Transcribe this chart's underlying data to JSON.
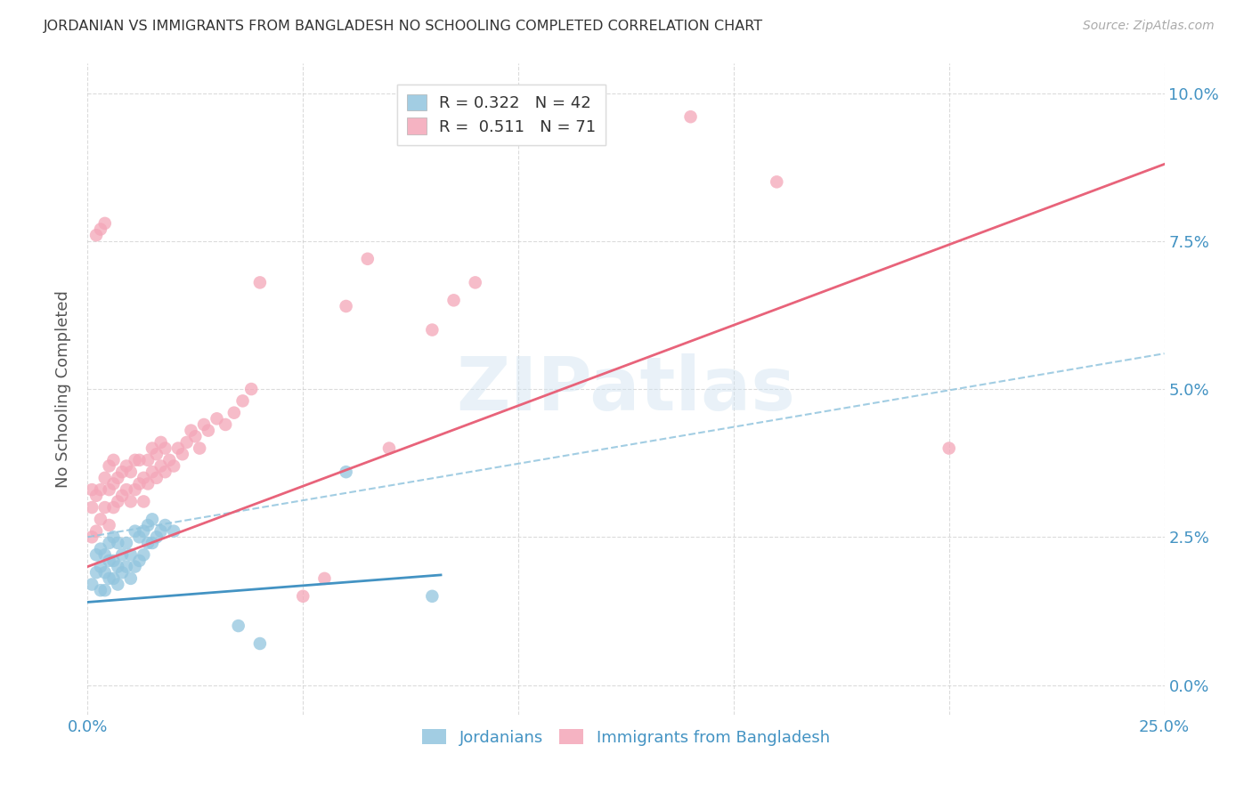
{
  "title": "JORDANIAN VS IMMIGRANTS FROM BANGLADESH NO SCHOOLING COMPLETED CORRELATION CHART",
  "source": "Source: ZipAtlas.com",
  "ylabel": "No Schooling Completed",
  "series1_color": "#92c5de",
  "series2_color": "#f4a6b8",
  "line1_color": "#4393c3",
  "line2_color": "#e8637a",
  "dashed_line_color": "#92c5de",
  "background_color": "#ffffff",
  "grid_color": "#cccccc",
  "watermark": "ZIPatlas",
  "xlim": [
    0,
    0.25
  ],
  "ylim": [
    -0.005,
    0.105
  ],
  "xticks": [
    0.0,
    0.05,
    0.1,
    0.15,
    0.2,
    0.25
  ],
  "yticks": [
    0.0,
    0.025,
    0.05,
    0.075,
    0.1
  ],
  "jordanian_line": {
    "x0": 0.0,
    "y0": 0.014,
    "x1": 0.25,
    "y1": 0.028
  },
  "bangladesh_line": {
    "x0": 0.0,
    "y0": 0.02,
    "x1": 0.25,
    "y1": 0.088
  },
  "dashed_line": {
    "x0": 0.0,
    "y0": 0.025,
    "x1": 0.25,
    "y1": 0.056
  },
  "jordanian_scatter": [
    [
      0.001,
      0.017
    ],
    [
      0.002,
      0.019
    ],
    [
      0.002,
      0.022
    ],
    [
      0.003,
      0.016
    ],
    [
      0.003,
      0.02
    ],
    [
      0.003,
      0.023
    ],
    [
      0.004,
      0.016
    ],
    [
      0.004,
      0.019
    ],
    [
      0.004,
      0.022
    ],
    [
      0.005,
      0.018
    ],
    [
      0.005,
      0.021
    ],
    [
      0.005,
      0.024
    ],
    [
      0.006,
      0.018
    ],
    [
      0.006,
      0.021
    ],
    [
      0.006,
      0.025
    ],
    [
      0.007,
      0.017
    ],
    [
      0.007,
      0.02
    ],
    [
      0.007,
      0.024
    ],
    [
      0.008,
      0.019
    ],
    [
      0.008,
      0.022
    ],
    [
      0.009,
      0.02
    ],
    [
      0.009,
      0.024
    ],
    [
      0.01,
      0.018
    ],
    [
      0.01,
      0.022
    ],
    [
      0.011,
      0.02
    ],
    [
      0.011,
      0.026
    ],
    [
      0.012,
      0.021
    ],
    [
      0.012,
      0.025
    ],
    [
      0.013,
      0.022
    ],
    [
      0.013,
      0.026
    ],
    [
      0.014,
      0.024
    ],
    [
      0.014,
      0.027
    ],
    [
      0.015,
      0.024
    ],
    [
      0.015,
      0.028
    ],
    [
      0.016,
      0.025
    ],
    [
      0.017,
      0.026
    ],
    [
      0.018,
      0.027
    ],
    [
      0.02,
      0.026
    ],
    [
      0.035,
      0.01
    ],
    [
      0.04,
      0.007
    ],
    [
      0.06,
      0.036
    ],
    [
      0.08,
      0.015
    ]
  ],
  "bangladesh_scatter": [
    [
      0.001,
      0.025
    ],
    [
      0.001,
      0.03
    ],
    [
      0.001,
      0.033
    ],
    [
      0.002,
      0.026
    ],
    [
      0.002,
      0.032
    ],
    [
      0.002,
      0.076
    ],
    [
      0.003,
      0.028
    ],
    [
      0.003,
      0.033
    ],
    [
      0.003,
      0.077
    ],
    [
      0.004,
      0.03
    ],
    [
      0.004,
      0.035
    ],
    [
      0.004,
      0.078
    ],
    [
      0.005,
      0.027
    ],
    [
      0.005,
      0.033
    ],
    [
      0.005,
      0.037
    ],
    [
      0.006,
      0.03
    ],
    [
      0.006,
      0.034
    ],
    [
      0.006,
      0.038
    ],
    [
      0.007,
      0.031
    ],
    [
      0.007,
      0.035
    ],
    [
      0.008,
      0.032
    ],
    [
      0.008,
      0.036
    ],
    [
      0.009,
      0.033
    ],
    [
      0.009,
      0.037
    ],
    [
      0.01,
      0.031
    ],
    [
      0.01,
      0.036
    ],
    [
      0.011,
      0.033
    ],
    [
      0.011,
      0.038
    ],
    [
      0.012,
      0.034
    ],
    [
      0.012,
      0.038
    ],
    [
      0.013,
      0.031
    ],
    [
      0.013,
      0.035
    ],
    [
      0.014,
      0.034
    ],
    [
      0.014,
      0.038
    ],
    [
      0.015,
      0.036
    ],
    [
      0.015,
      0.04
    ],
    [
      0.016,
      0.035
    ],
    [
      0.016,
      0.039
    ],
    [
      0.017,
      0.037
    ],
    [
      0.017,
      0.041
    ],
    [
      0.018,
      0.036
    ],
    [
      0.018,
      0.04
    ],
    [
      0.019,
      0.038
    ],
    [
      0.02,
      0.037
    ],
    [
      0.021,
      0.04
    ],
    [
      0.022,
      0.039
    ],
    [
      0.023,
      0.041
    ],
    [
      0.024,
      0.043
    ],
    [
      0.025,
      0.042
    ],
    [
      0.026,
      0.04
    ],
    [
      0.027,
      0.044
    ],
    [
      0.028,
      0.043
    ],
    [
      0.03,
      0.045
    ],
    [
      0.032,
      0.044
    ],
    [
      0.034,
      0.046
    ],
    [
      0.036,
      0.048
    ],
    [
      0.038,
      0.05
    ],
    [
      0.04,
      0.068
    ],
    [
      0.05,
      0.015
    ],
    [
      0.055,
      0.018
    ],
    [
      0.06,
      0.064
    ],
    [
      0.065,
      0.072
    ],
    [
      0.07,
      0.04
    ],
    [
      0.08,
      0.06
    ],
    [
      0.085,
      0.065
    ],
    [
      0.09,
      0.068
    ],
    [
      0.14,
      0.096
    ],
    [
      0.16,
      0.085
    ],
    [
      0.2,
      0.04
    ]
  ]
}
